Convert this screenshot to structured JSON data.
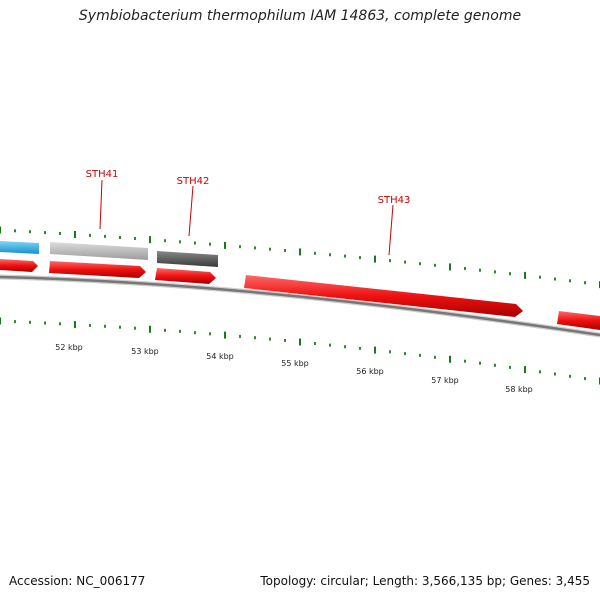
{
  "title": "Symbiobacterium thermophilum IAM 14863, complete genome",
  "footer": {
    "accession": "Accession: NC_006177",
    "summary": "Topology: circular; Length: 3,566,135 bp; Genes: 3,455"
  },
  "gene_labels": [
    "STH41",
    "STH42",
    "STH43"
  ],
  "tick_labels": [
    "52 kbp",
    "53 kbp",
    "54 kbp",
    "55 kbp",
    "56 kbp",
    "57 kbp",
    "58 kbp"
  ],
  "colors": {
    "gene": "#ee1111",
    "gene_label": "#cc0000",
    "cyan_feature": "#1fa8e0",
    "light_gray_feature": "#b8b8b8",
    "dark_gray_feature": "#5a5a5a",
    "backbone": "#888888",
    "tick": "#1a7a1a"
  }
}
